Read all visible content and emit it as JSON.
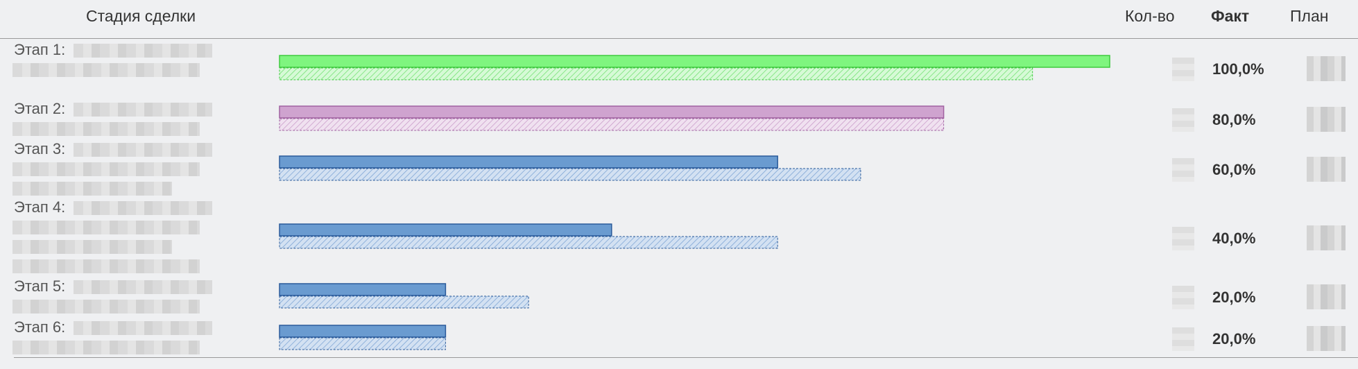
{
  "header": {
    "stage": "Стадия сделки",
    "qty": "Кол-во",
    "fact": "Факт",
    "plan": "План"
  },
  "colors": {
    "stage1_fact": "#7ff57f",
    "stage1_stroke": "#3ec93e",
    "stage2_fact": "#cfa3cf",
    "stage2_stroke": "#a162a1",
    "default_fact": "#6a9bd0",
    "default_stroke": "#2a5a9a"
  },
  "chart_data": {
    "type": "bar",
    "orientation": "horizontal",
    "categories": [
      "Этап 1:",
      "Этап 2:",
      "Этап 3:",
      "Этап 4:",
      "Этап 5:",
      "Этап 6:"
    ],
    "series": [
      {
        "values": [
          100,
          80,
          60,
          40,
          20,
          20
        ]
      },
      {
        "values": [
          90.7,
          80,
          70,
          60,
          30,
          20
        ]
      }
    ],
    "fact_labels": [
      "100,0%",
      "80,0%",
      "60,0%",
      "40,0%",
      "20,0%",
      "20,0%"
    ],
    "xlim": [
      0,
      100
    ],
    "grid": false
  }
}
